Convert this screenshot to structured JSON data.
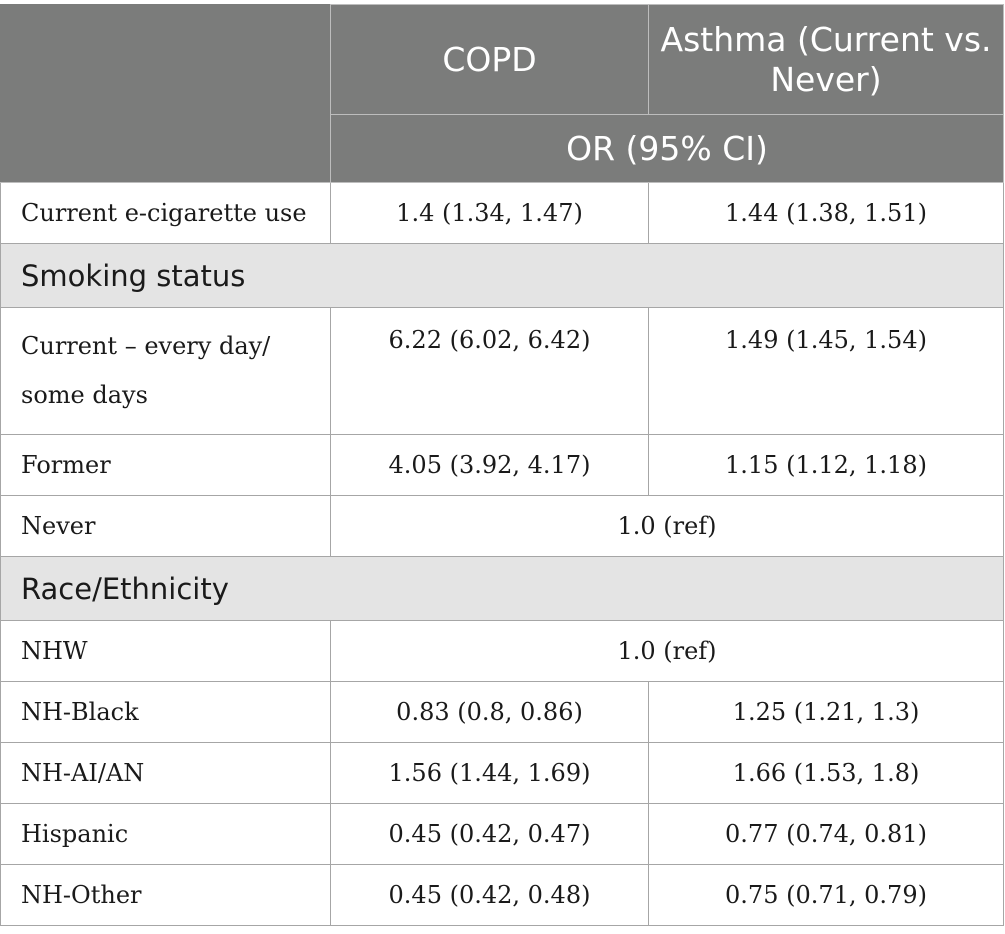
{
  "header": {
    "col2": "COPD",
    "col3": "Asthma (Current vs. Never)",
    "subheader": "OR (95% CI)"
  },
  "rows": {
    "ecig": {
      "label": "Current e-cigarette use",
      "copd": "1.4 (1.34, 1.47)",
      "asthma": "1.44 (1.38, 1.51)"
    },
    "smoking_section": "Smoking status",
    "current": {
      "label": "Current – every day/ some days",
      "copd": "6.22 (6.02, 6.42)",
      "asthma": "1.49 (1.45, 1.54)"
    },
    "former": {
      "label": "Former",
      "copd": "4.05 (3.92, 4.17)",
      "asthma": "1.15 (1.12, 1.18)"
    },
    "never": {
      "label": "Never",
      "combined": "1.0 (ref)"
    },
    "race_section": "Race/Ethnicity",
    "nhw": {
      "label": "NHW",
      "combined": "1.0 (ref)"
    },
    "nh_black": {
      "label": "NH-Black",
      "copd": "0.83 (0.8, 0.86)",
      "asthma": "1.25 (1.21, 1.3)"
    },
    "nh_aian": {
      "label": "NH-AI/AN",
      "copd": "1.56 (1.44, 1.69)",
      "asthma": "1.66 (1.53, 1.8)"
    },
    "hispanic": {
      "label": "Hispanic",
      "copd": "0.45 (0.42, 0.47)",
      "asthma": "0.77 (0.74, 0.81)"
    },
    "nh_other": {
      "label": "NH-Other",
      "copd": "0.45 (0.42, 0.48)",
      "asthma": "0.75 (0.71, 0.79)"
    }
  }
}
